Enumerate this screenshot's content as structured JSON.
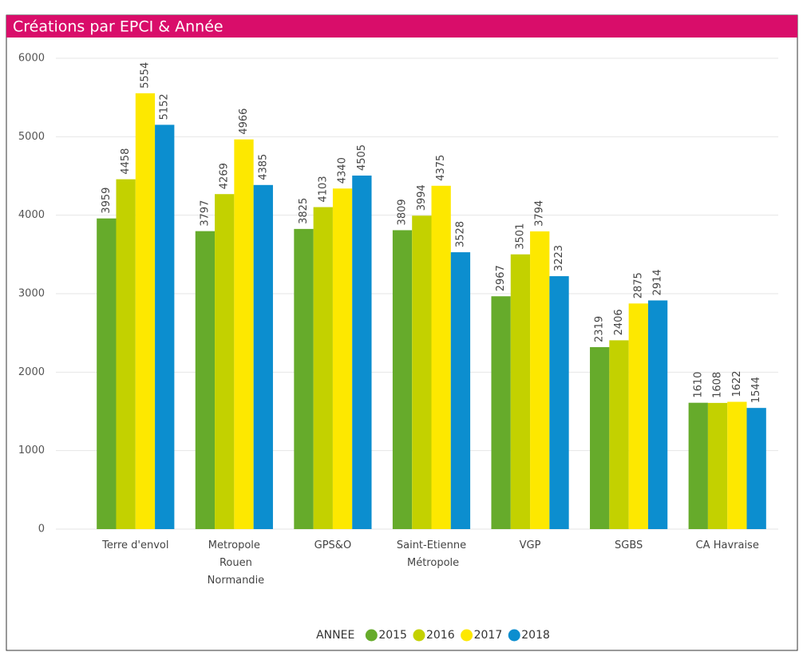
{
  "chart_data": {
    "type": "bar",
    "title": "Créations par EPCI & Année",
    "categories": [
      "Terre d'envol",
      "Metropole Rouen Normandie",
      "GPS&O",
      "Saint-Etienne Métropole",
      "VGP",
      "SGBS",
      "CA Havraise"
    ],
    "series": [
      {
        "name": "2015",
        "color": "#66ab2b",
        "values": [
          3959,
          3797,
          3825,
          3809,
          2967,
          2319,
          1610
        ]
      },
      {
        "name": "2016",
        "color": "#c3d100",
        "values": [
          4458,
          4269,
          4103,
          3994,
          3501,
          2406,
          1608
        ]
      },
      {
        "name": "2017",
        "color": "#fde800",
        "values": [
          5554,
          4966,
          4340,
          4375,
          3794,
          2875,
          1622
        ]
      },
      {
        "name": "2018",
        "color": "#0c8ecf",
        "values": [
          5152,
          4385,
          4505,
          3528,
          3223,
          2914,
          1544
        ]
      }
    ],
    "legend_title": "ANNEE",
    "ylim": [
      0,
      6000
    ],
    "yticks": [
      0,
      1000,
      2000,
      3000,
      4000,
      5000,
      6000
    ],
    "grid": true,
    "legend": "bottom"
  }
}
